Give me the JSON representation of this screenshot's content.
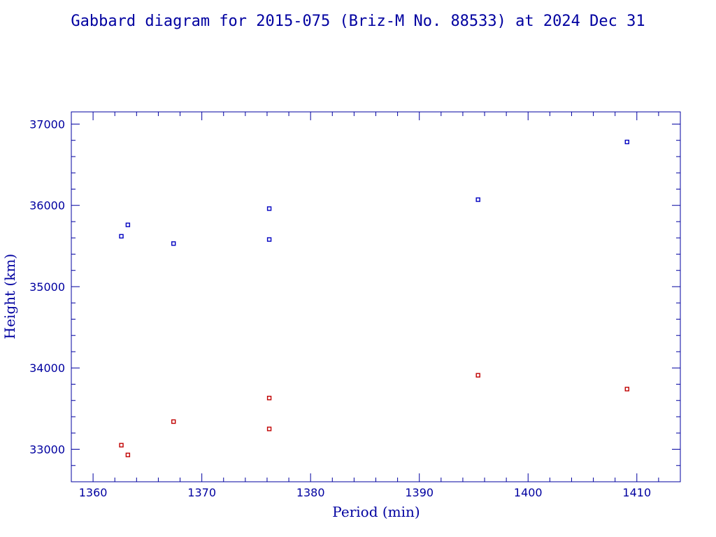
{
  "chart_data": {
    "type": "scatter",
    "title": "Gabbard diagram for 2015-075 (Briz-M No. 88533) at 2024 Dec 31",
    "xlabel": "Period (min)",
    "ylabel": "Height (km)",
    "xlim": [
      1358,
      1414
    ],
    "ylim": [
      32600,
      37150
    ],
    "xticks": [
      1360,
      1370,
      1380,
      1390,
      1400,
      1410
    ],
    "yticks": [
      33000,
      34000,
      35000,
      36000,
      37000
    ],
    "xticks_minor_step": 2,
    "yticks_minor_step": 200,
    "grid": false,
    "series": [
      {
        "color": "#0000c0",
        "points": [
          {
            "x": 1362.6,
            "y": 35620
          },
          {
            "x": 1363.2,
            "y": 35760
          },
          {
            "x": 1367.4,
            "y": 35530
          },
          {
            "x": 1376.2,
            "y": 35960
          },
          {
            "x": 1376.2,
            "y": 35580
          },
          {
            "x": 1395.4,
            "y": 36070
          },
          {
            "x": 1409.1,
            "y": 36780
          }
        ]
      },
      {
        "color": "#c00000",
        "points": [
          {
            "x": 1362.6,
            "y": 33050
          },
          {
            "x": 1363.2,
            "y": 32930
          },
          {
            "x": 1367.4,
            "y": 33340
          },
          {
            "x": 1376.2,
            "y": 33630
          },
          {
            "x": 1376.2,
            "y": 33250
          },
          {
            "x": 1395.4,
            "y": 33910
          },
          {
            "x": 1409.1,
            "y": 33740
          }
        ]
      }
    ]
  }
}
